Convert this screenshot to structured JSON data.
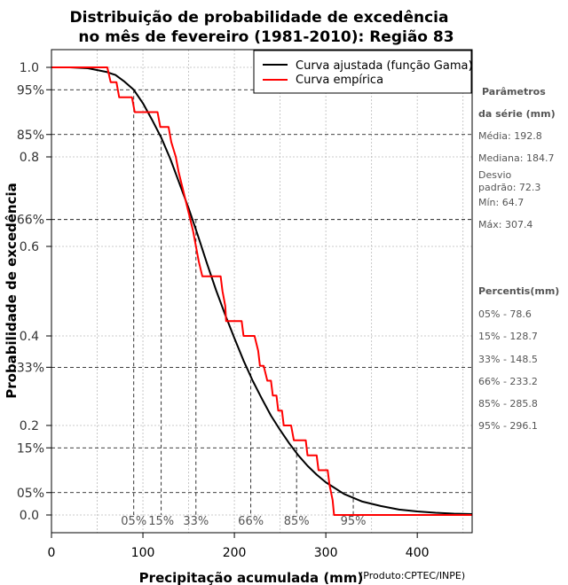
{
  "chart_data": {
    "type": "line",
    "title_line1": "Distribuição de probabilidade de excedência",
    "title_line2": "no mês de fevereiro (1981-2010): Região 83",
    "xlabel": "Precipitação acumulada (mm)",
    "ylabel": "Probabilidade de excedência",
    "credit": "(Produto:CPTEC/INPE)",
    "xlim": [
      0,
      460
    ],
    "ylim": [
      -0.04,
      1.04
    ],
    "x_ticks": [
      {
        "value": 0,
        "label": "0"
      },
      {
        "value": 100,
        "label": "100"
      },
      {
        "value": 200,
        "label": "200"
      },
      {
        "value": 300,
        "label": "300"
      },
      {
        "value": 400,
        "label": "400"
      }
    ],
    "y_ticks": [
      {
        "value": 0.0,
        "label": "0.0"
      },
      {
        "value": 0.2,
        "label": "0.2"
      },
      {
        "value": 0.4,
        "label": "0.4"
      },
      {
        "value": 0.6,
        "label": "0.6"
      },
      {
        "value": 0.8,
        "label": "0.8"
      },
      {
        "value": 1.0,
        "label": "1.0"
      }
    ],
    "y_percent_ticks": [
      {
        "value": 0.05,
        "label": "05%"
      },
      {
        "value": 0.15,
        "label": "15%"
      },
      {
        "value": 0.33,
        "label": "33%"
      },
      {
        "value": 0.66,
        "label": "66%"
      },
      {
        "value": 0.85,
        "label": "85%"
      },
      {
        "value": 0.95,
        "label": "95%"
      }
    ],
    "grid": true,
    "legend_position": "top-right",
    "series": [
      {
        "name": "Curva ajustada (função Gama)",
        "color": "#000000",
        "x": [
          0,
          20,
          40,
          60,
          70,
          80,
          90,
          100,
          110,
          120,
          130,
          140,
          150,
          160,
          170,
          180,
          190,
          200,
          210,
          220,
          230,
          240,
          250,
          260,
          270,
          280,
          290,
          300,
          320,
          340,
          360,
          380,
          400,
          420,
          440,
          460
        ],
        "y": [
          1.0,
          1.0,
          0.998,
          0.99,
          0.983,
          0.968,
          0.95,
          0.92,
          0.883,
          0.843,
          0.795,
          0.74,
          0.685,
          0.625,
          0.562,
          0.502,
          0.447,
          0.395,
          0.345,
          0.3,
          0.26,
          0.222,
          0.19,
          0.16,
          0.133,
          0.11,
          0.09,
          0.073,
          0.047,
          0.03,
          0.02,
          0.012,
          0.008,
          0.005,
          0.003,
          0.002
        ]
      },
      {
        "name": "Curva empírica",
        "color": "#ff0000",
        "x": [
          0,
          61,
          64.7,
          71,
          74,
          88,
          91,
          116,
          119,
          128,
          131,
          136,
          139,
          143,
          147,
          151,
          155,
          158,
          161,
          165,
          169,
          185,
          187,
          190,
          191,
          208,
          210,
          220,
          222,
          226,
          228,
          232,
          236,
          240,
          242,
          246,
          248,
          252,
          254,
          260,
          262,
          265,
          268,
          278,
          280,
          290,
          292,
          302,
          304,
          307.4,
          309,
          320,
          460
        ],
        "y": [
          1.0,
          1.0,
          0.967,
          0.967,
          0.933,
          0.933,
          0.9,
          0.9,
          0.867,
          0.867,
          0.833,
          0.8,
          0.767,
          0.733,
          0.7,
          0.667,
          0.633,
          0.6,
          0.567,
          0.533,
          0.533,
          0.533,
          0.5,
          0.467,
          0.433,
          0.433,
          0.4,
          0.4,
          0.4,
          0.367,
          0.333,
          0.333,
          0.3,
          0.3,
          0.267,
          0.267,
          0.233,
          0.233,
          0.2,
          0.2,
          0.2,
          0.167,
          0.167,
          0.167,
          0.133,
          0.133,
          0.1,
          0.1,
          0.067,
          0.033,
          0.0,
          0.0,
          0.0
        ]
      }
    ],
    "percentile_markers": [
      {
        "label": "05%",
        "x": 90,
        "y": 0.95
      },
      {
        "label": "15%",
        "x": 120,
        "y": 0.85
      },
      {
        "label": "33%",
        "x": 158,
        "y": 0.66
      },
      {
        "label": "66%",
        "x": 218,
        "y": 0.33
      },
      {
        "label": "85%",
        "x": 268,
        "y": 0.15
      },
      {
        "label": "95%",
        "x": 330,
        "y": 0.05
      }
    ]
  },
  "sidebar": {
    "params_title_1": "Parâmetros",
    "params_title_2": "da série (mm)",
    "media": "Média: 192.8",
    "mediana": "Mediana: 184.7",
    "desvio_1": "Desvio",
    "desvio_2": "padrão: 72.3",
    "min": "Mín: 64.7",
    "max": "Máx: 307.4",
    "percentis_title": "Percentis(mm)",
    "p05": "05% - 78.6",
    "p15": "15% - 128.7",
    "p33": "33% - 148.5",
    "p66": "66% - 233.2",
    "p85": "85% - 285.8",
    "p95": "95% - 296.1"
  }
}
